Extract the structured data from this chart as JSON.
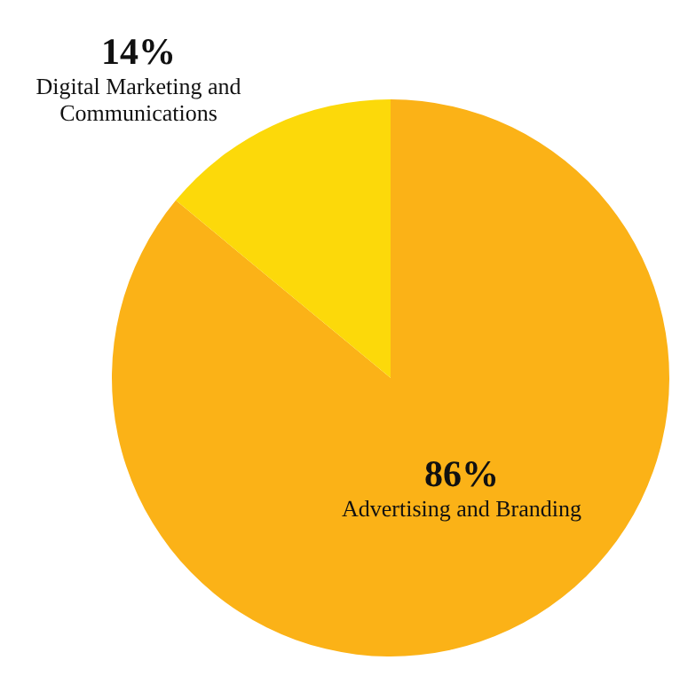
{
  "chart_data": {
    "type": "pie",
    "categories": [
      "Advertising and Branding",
      "Digital Marketing and Communications"
    ],
    "values": [
      86,
      14
    ],
    "colors": [
      "#fbb217",
      "#fcd90a"
    ],
    "value_labels": [
      "86%",
      "14%"
    ]
  }
}
